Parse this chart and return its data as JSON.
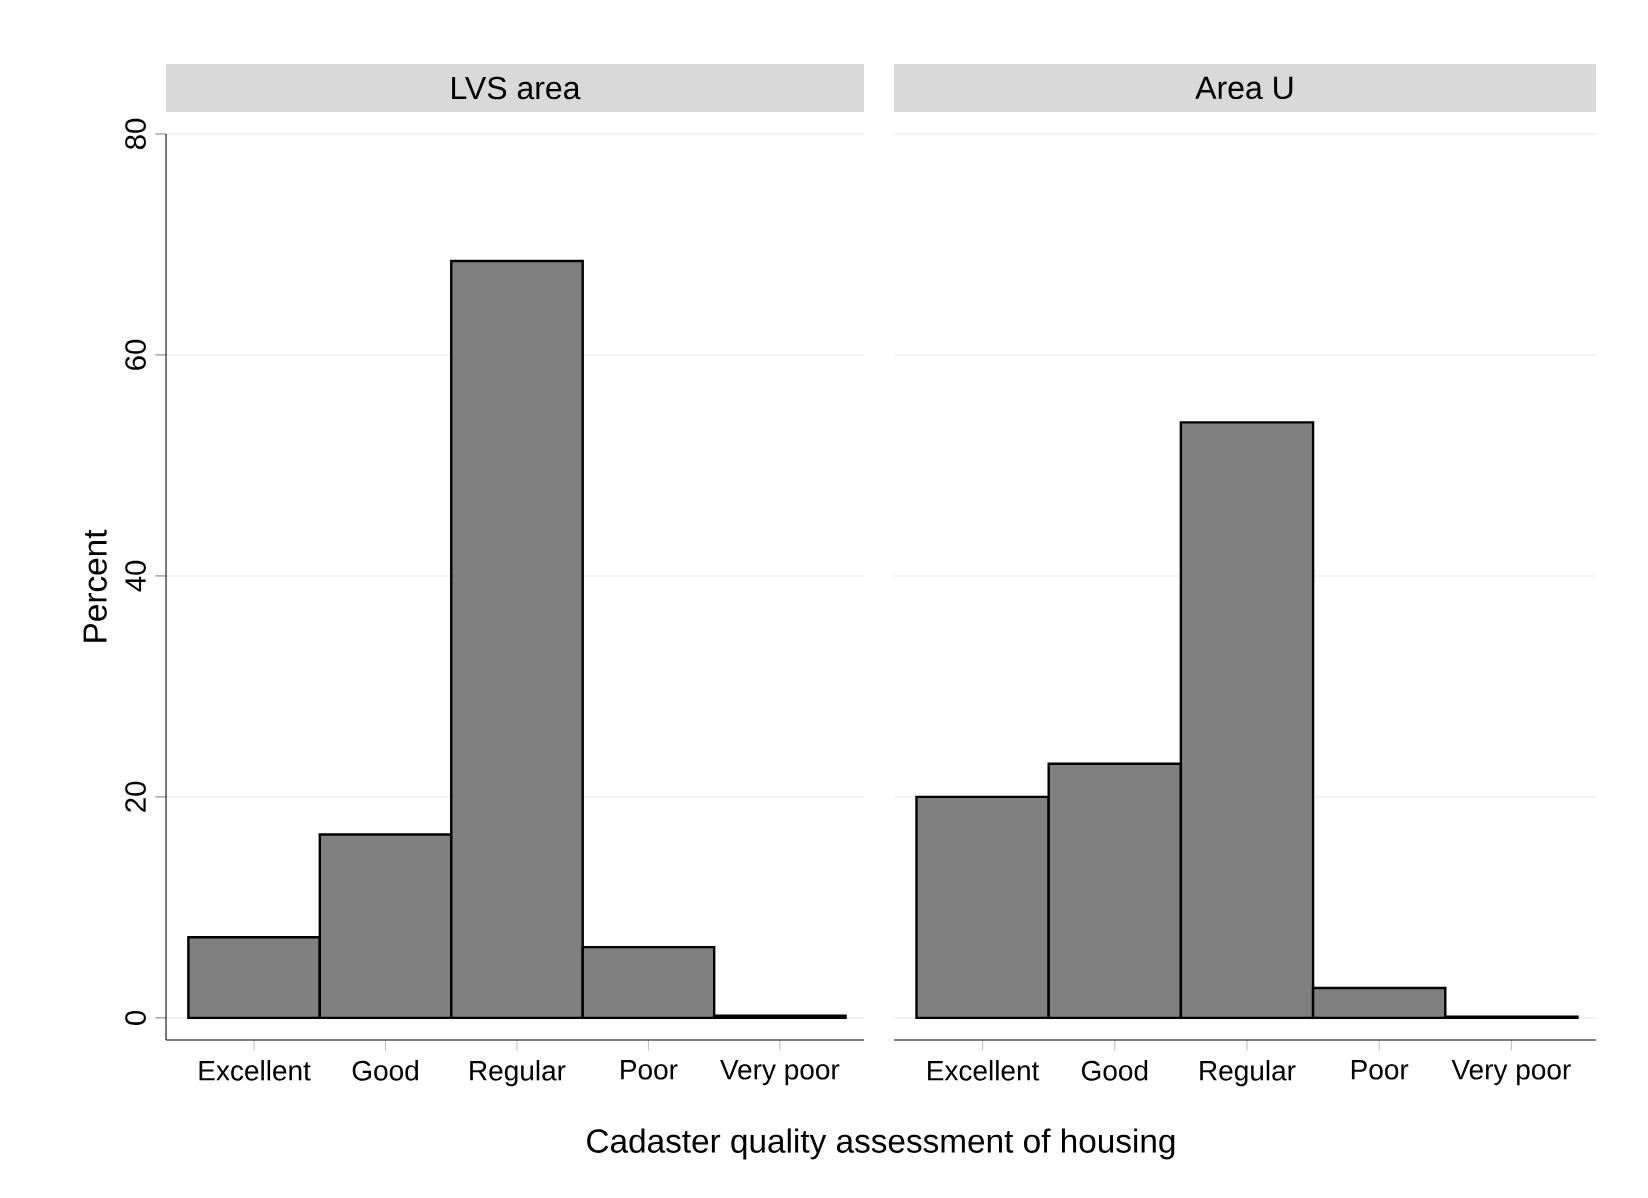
{
  "chart_data": [
    {
      "type": "bar",
      "title": "LVS area",
      "ylabel": "Percent",
      "xlabel": "Cadaster quality assessment of housing",
      "categories": [
        "Excellent",
        "Good",
        "Regular",
        "Poor",
        "Very poor"
      ],
      "values": [
        7.3,
        16.6,
        68.5,
        6.4,
        0.2
      ],
      "color": "#808080",
      "ylim": [
        -2,
        80
      ],
      "yticks": [
        0,
        20,
        40,
        60,
        80
      ],
      "grid": "y"
    },
    {
      "type": "bar",
      "title": "Area U",
      "categories": [
        "Excellent",
        "Good",
        "Regular",
        "Poor",
        "Very poor"
      ],
      "values": [
        20.0,
        23.0,
        53.9,
        2.7,
        0.1
      ],
      "color": "#808080",
      "ylim": [
        -2,
        80
      ],
      "yticks": [
        0,
        20,
        40,
        60,
        80
      ],
      "grid": "y",
      "tick_labels": "x"
    }
  ]
}
